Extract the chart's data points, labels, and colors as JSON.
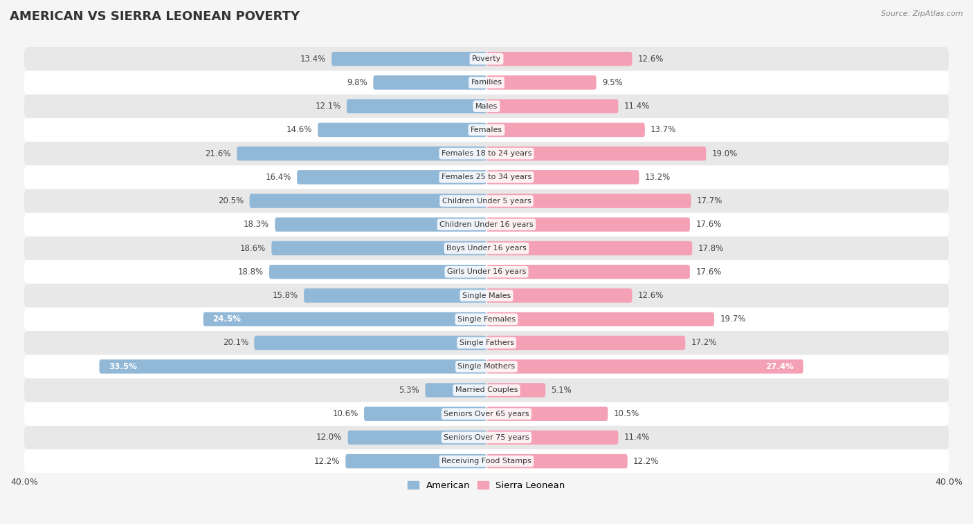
{
  "title": "AMERICAN VS SIERRA LEONEAN POVERTY",
  "source": "Source: ZipAtlas.com",
  "categories": [
    "Poverty",
    "Families",
    "Males",
    "Females",
    "Females 18 to 24 years",
    "Females 25 to 34 years",
    "Children Under 5 years",
    "Children Under 16 years",
    "Boys Under 16 years",
    "Girls Under 16 years",
    "Single Males",
    "Single Females",
    "Single Fathers",
    "Single Mothers",
    "Married Couples",
    "Seniors Over 65 years",
    "Seniors Over 75 years",
    "Receiving Food Stamps"
  ],
  "american": [
    13.4,
    9.8,
    12.1,
    14.6,
    21.6,
    16.4,
    20.5,
    18.3,
    18.6,
    18.8,
    15.8,
    24.5,
    20.1,
    33.5,
    5.3,
    10.6,
    12.0,
    12.2
  ],
  "sierra_leonean": [
    12.6,
    9.5,
    11.4,
    13.7,
    19.0,
    13.2,
    17.7,
    17.6,
    17.8,
    17.6,
    12.6,
    19.7,
    17.2,
    27.4,
    5.1,
    10.5,
    11.4,
    12.2
  ],
  "american_color": "#92b8d8",
  "sierra_leonean_color": "#f4a0b5",
  "highlight_american": [
    11,
    13
  ],
  "highlight_sierra_leonean": [
    13
  ],
  "axis_limit": 40.0,
  "background_color": "#f5f5f5",
  "row_bg_colors": [
    "#ffffff",
    "#e8e8e8"
  ],
  "bar_height": 0.6,
  "font_size_title": 13,
  "font_size_labels": 8.5,
  "font_size_axis": 9,
  "font_size_category": 8,
  "legend_labels": [
    "American",
    "Sierra Leonean"
  ]
}
